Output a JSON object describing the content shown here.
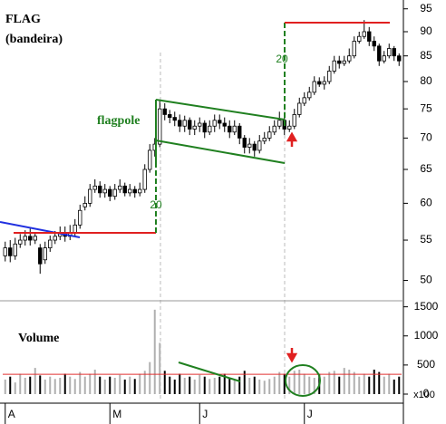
{
  "chart_data": {
    "type": "candlestick",
    "title": "FLAG",
    "subtitle": "(bandeira)",
    "annotations": {
      "flagpole": "flagpole",
      "pole_length": "20",
      "target_length": "20"
    },
    "log_scale": true,
    "ylim": [
      49,
      97
    ],
    "yticks": [
      50,
      55,
      60,
      65,
      70,
      75,
      80,
      85,
      90,
      95
    ],
    "xticks": [
      {
        "value": 0,
        "label": "A"
      },
      {
        "value": 21,
        "label": "M"
      },
      {
        "value": 39,
        "label": "J"
      },
      {
        "value": 60,
        "label": "J"
      }
    ],
    "open": [
      53,
      54,
      53,
      54.5,
      55,
      55.5,
      55,
      54,
      52.5,
      54,
      55,
      55.5,
      56,
      55.5,
      56,
      57,
      59.5,
      60,
      62,
      62.5,
      61.5,
      62,
      61,
      62,
      62.5,
      61.5,
      62,
      61.5,
      62,
      65,
      68,
      69,
      75,
      74,
      73.5,
      73,
      72,
      73,
      71.5,
      72,
      72.5,
      71,
      72,
      73,
      72.5,
      72,
      71,
      72,
      70,
      68.5,
      69,
      68,
      69.5,
      70,
      71,
      72,
      73,
      71.5,
      72,
      74,
      76,
      77,
      78,
      80,
      79.5,
      80,
      82,
      84,
      83.5,
      84,
      85,
      88,
      89,
      90,
      88,
      87,
      84,
      85,
      86.5,
      85
    ],
    "high": [
      54.8,
      55,
      55.3,
      55.8,
      56.3,
      56.5,
      56,
      54.5,
      54.8,
      55.6,
      56.2,
      56.8,
      56.8,
      57,
      57.8,
      59.8,
      61,
      62.8,
      63.5,
      63.2,
      62.8,
      62.5,
      62.8,
      63.5,
      63,
      62.8,
      62.5,
      63,
      65.8,
      69,
      70,
      76.5,
      76,
      74.8,
      74.5,
      74,
      73.8,
      73.5,
      73,
      73.5,
      73,
      73,
      74,
      74,
      73.5,
      73,
      73,
      72.5,
      70.5,
      70,
      69.5,
      70.5,
      71,
      72,
      73,
      74.5,
      73.5,
      73,
      75,
      77,
      78,
      79,
      81,
      80.8,
      81,
      83,
      85,
      85,
      85,
      86.5,
      89,
      90,
      92.5,
      91,
      89,
      87.5,
      86,
      87.5,
      87,
      85.5
    ],
    "low": [
      52.3,
      52.2,
      52.5,
      54,
      54.3,
      54.3,
      54.5,
      50.8,
      52,
      53.5,
      54.5,
      55,
      54.8,
      55,
      55.5,
      56.5,
      59,
      59.5,
      61.5,
      60.8,
      60.8,
      60.3,
      60.5,
      61.5,
      61,
      61,
      60.8,
      61,
      61.5,
      64.5,
      67,
      68.5,
      73,
      72.5,
      72,
      71,
      71,
      70.5,
      70.5,
      71,
      70,
      70.5,
      71,
      71.5,
      71,
      70,
      70.5,
      69,
      67.5,
      67.5,
      67,
      67.5,
      69,
      69.5,
      70.5,
      71.5,
      70.5,
      71,
      71.5,
      73.5,
      75.5,
      76.5,
      77.5,
      79,
      78.5,
      79.5,
      81.5,
      82.5,
      83,
      83.5,
      84.5,
      87.5,
      88.5,
      87,
      86,
      83,
      83.5,
      84.5,
      84,
      83
    ],
    "close": [
      54,
      53,
      54.5,
      55,
      55.5,
      55,
      55.5,
      52,
      54,
      55,
      55.5,
      56,
      55.5,
      56,
      57,
      59,
      60,
      62,
      62.5,
      61.5,
      62,
      61,
      62,
      62.5,
      61.5,
      62,
      61.5,
      62,
      65,
      68,
      69,
      75,
      74,
      73.5,
      73,
      72,
      73,
      71.5,
      72,
      72.5,
      71,
      72,
      73,
      72.5,
      72,
      71,
      72,
      70,
      68.5,
      69,
      68,
      69.5,
      70,
      71,
      72,
      73,
      71.5,
      72,
      74,
      76,
      77,
      78,
      80,
      79.5,
      80,
      82,
      84,
      83.5,
      84,
      85,
      88,
      89,
      90,
      88,
      87,
      84,
      85,
      86.5,
      85,
      84
    ],
    "volume": {
      "label": "Volume",
      "unit": "x100",
      "ylim": [
        0,
        1650
      ],
      "yticks": [
        0,
        500,
        1000,
        1500
      ],
      "average": 340,
      "average_color": "#e03030",
      "up_color": "#b0b0b0",
      "down_color": "#000000",
      "values": [
        250,
        300,
        200,
        350,
        280,
        300,
        450,
        320,
        250,
        300,
        260,
        280,
        350,
        300,
        260,
        380,
        300,
        350,
        420,
        300,
        250,
        300,
        280,
        330,
        250,
        300,
        260,
        350,
        400,
        550,
        1450,
        880,
        400,
        300,
        250,
        350,
        280,
        300,
        250,
        330,
        300,
        260,
        280,
        300,
        350,
        280,
        250,
        300,
        400,
        280,
        300,
        250,
        230,
        260,
        300,
        380,
        350,
        300,
        400,
        420,
        350,
        300,
        280,
        350,
        300,
        380,
        400,
        300,
        450,
        420,
        380,
        300,
        350,
        300,
        420,
        380,
        300,
        350,
        250,
        300
      ]
    }
  }
}
